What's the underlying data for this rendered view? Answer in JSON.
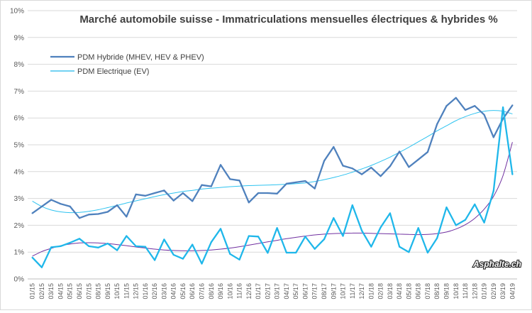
{
  "chart_data": {
    "type": "line",
    "title": "Marché automobile suisse - Immatriculations mensuelles électriques & hybrides %",
    "ylim": [
      0,
      10
    ],
    "yticks": [
      "0%",
      "1%",
      "2%",
      "3%",
      "4%",
      "5%",
      "6%",
      "7%",
      "8%",
      "9%",
      "10%"
    ],
    "grid": true,
    "legend_position": "top-left",
    "categories": [
      "01/15",
      "02/15",
      "03/15",
      "04/15",
      "05/15",
      "06/15",
      "07/15",
      "08/15",
      "09/15",
      "10/15",
      "11/15",
      "12/15",
      "01/16",
      "02/16",
      "03/16",
      "04/16",
      "05/16",
      "06/16",
      "07/16",
      "08/16",
      "09/16",
      "10/16",
      "11/16",
      "12/16",
      "01/17",
      "02/17",
      "03/17",
      "04/17",
      "05/17",
      "06/17",
      "07/17",
      "08/17",
      "09/17",
      "10/17",
      "11/17",
      "12/17",
      "01/18",
      "02/18",
      "03/18",
      "04/18",
      "05/18",
      "06/18",
      "07/18",
      "08/18",
      "09/18",
      "10/18",
      "11/18",
      "12/18",
      "01/19",
      "02/19",
      "03/19",
      "04/19"
    ],
    "series": [
      {
        "name": "PDM Hybride (MHEV, HEV & PHEV)",
        "color": "#4f81bd",
        "values": [
          2.45,
          2.7,
          2.95,
          2.8,
          2.7,
          2.27,
          2.4,
          2.42,
          2.5,
          2.75,
          2.32,
          3.15,
          3.1,
          3.2,
          3.3,
          2.92,
          3.2,
          2.9,
          3.5,
          3.45,
          4.25,
          3.72,
          3.67,
          2.85,
          3.2,
          3.2,
          3.18,
          3.55,
          3.6,
          3.65,
          3.37,
          4.4,
          4.92,
          4.22,
          4.12,
          3.9,
          4.15,
          3.83,
          4.2,
          4.75,
          4.17,
          4.45,
          4.73,
          5.77,
          6.45,
          6.75,
          6.3,
          6.45,
          6.12,
          5.28,
          5.97,
          6.47
        ]
      },
      {
        "name": "PDM Electrique (EV)",
        "color": "#1fb7ea",
        "values": [
          0.8,
          0.43,
          1.18,
          1.22,
          1.35,
          1.5,
          1.22,
          1.17,
          1.32,
          1.07,
          1.6,
          1.22,
          1.2,
          0.7,
          1.47,
          0.9,
          0.75,
          1.28,
          0.57,
          1.37,
          1.87,
          0.93,
          0.72,
          1.6,
          1.58,
          0.97,
          1.9,
          0.98,
          0.98,
          1.58,
          1.12,
          1.48,
          2.27,
          1.6,
          2.75,
          1.8,
          1.2,
          1.92,
          2.45,
          1.2,
          1.0,
          1.9,
          0.98,
          1.52,
          2.67,
          2.0,
          2.2,
          2.78,
          2.1,
          3.28,
          6.4,
          3.9
        ]
      }
    ],
    "trendlines": [
      {
        "color": "#2ec3f0",
        "values": [
          2.9,
          2.7,
          2.57,
          2.5,
          2.47,
          2.48,
          2.52,
          2.58,
          2.66,
          2.74,
          2.83,
          2.91,
          2.99,
          3.07,
          3.14,
          3.2,
          3.26,
          3.3,
          3.35,
          3.38,
          3.41,
          3.44,
          3.46,
          3.48,
          3.49,
          3.5,
          3.51,
          3.53,
          3.55,
          3.58,
          3.63,
          3.7,
          3.78,
          3.87,
          3.98,
          4.1,
          4.23,
          4.38,
          4.54,
          4.72,
          4.91,
          5.11,
          5.31,
          5.52,
          5.71,
          5.9,
          6.05,
          6.17,
          6.25,
          6.28,
          6.25,
          6.15
        ]
      },
      {
        "color": "#7030a0",
        "values": [
          0.85,
          1.02,
          1.14,
          1.24,
          1.3,
          1.34,
          1.35,
          1.34,
          1.32,
          1.28,
          1.24,
          1.19,
          1.15,
          1.11,
          1.08,
          1.06,
          1.05,
          1.05,
          1.06,
          1.08,
          1.11,
          1.15,
          1.2,
          1.26,
          1.32,
          1.38,
          1.44,
          1.5,
          1.55,
          1.6,
          1.64,
          1.67,
          1.69,
          1.7,
          1.71,
          1.71,
          1.7,
          1.69,
          1.68,
          1.67,
          1.66,
          1.65,
          1.66,
          1.69,
          1.75,
          1.86,
          2.02,
          2.26,
          2.6,
          3.08,
          3.85,
          5.1
        ]
      }
    ]
  },
  "watermark": "Asphalte.ch"
}
